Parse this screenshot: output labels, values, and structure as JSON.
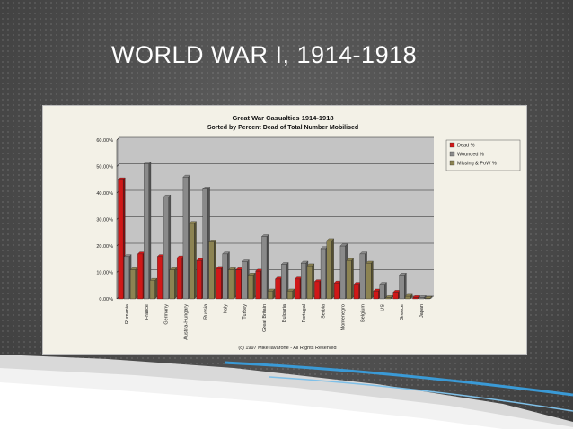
{
  "slide": {
    "title": "WORLD WAR I, 1914-1918"
  },
  "chart_data": {
    "type": "bar",
    "title": "Great War Casualties 1914-1918",
    "subtitle": "Sorted by Percent Dead of Total Number Mobilised",
    "footer": "(c) 1997 Mike Iavarone - All Rights Reserved",
    "categories": [
      "Rumania",
      "France",
      "Germany",
      "Austria-Hungary",
      "Russia",
      "Italy",
      "Turkey",
      "Great Britain",
      "Bulgaria",
      "Portugal",
      "Serbia",
      "Montenegro",
      "Belgium",
      "US",
      "Greece",
      "Japan"
    ],
    "series": [
      {
        "name": "Dead %",
        "color": "#d01818",
        "values": [
          45,
          17,
          16,
          15.5,
          14.5,
          11.5,
          11,
          10.5,
          7.5,
          7.5,
          6.5,
          6,
          5.5,
          3,
          2.5,
          0.5
        ]
      },
      {
        "name": "Wounded %",
        "color": "#8a8a8a",
        "values": [
          16,
          51,
          38.5,
          46,
          41.5,
          17,
          14,
          23.5,
          13,
          13.5,
          19,
          20,
          17,
          5.5,
          9,
          0.5
        ]
      },
      {
        "name": "Missing & PoW %",
        "color": "#8c8352",
        "values": [
          11,
          7,
          11,
          28.5,
          21.5,
          11,
          9,
          3,
          3,
          12.5,
          22,
          14.5,
          13.5,
          0.5,
          1,
          0.2
        ]
      }
    ],
    "ylim": [
      0,
      60
    ],
    "yticks": [
      "0.00%",
      "10.00%",
      "20.00%",
      "30.00%",
      "40.00%",
      "50.00%",
      "60.00%"
    ],
    "grid": true,
    "legend_position": "right"
  }
}
